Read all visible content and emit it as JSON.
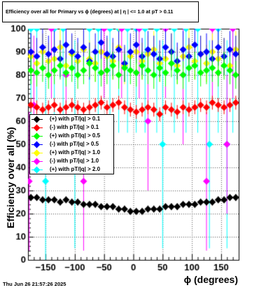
{
  "chart_data": {
    "type": "scatter",
    "title": "Efficiency over all for Primary vs ϕ (degrees) at |  η  | <= 1.0 at pT > 0.11",
    "xlabel": "ϕ (degrees)",
    "ylabel": "Efficiency over all (%)",
    "xlim": [
      -180,
      180
    ],
    "ylim": [
      0,
      100
    ],
    "x_ticks": [
      "−150",
      "−100",
      "−50",
      "0",
      "50",
      "100",
      "150"
    ],
    "y_ticks": [
      "0",
      "10",
      "20",
      "30",
      "40",
      "50",
      "60",
      "70",
      "80",
      "90",
      "100"
    ],
    "grid": true,
    "legend_position": "middle-left",
    "series": [
      {
        "name": "(+) with pT/|q| > 0.1",
        "color": "#000000",
        "x": [
          -175,
          -165,
          -155,
          -145,
          -135,
          -125,
          -115,
          -105,
          -95,
          -85,
          -75,
          -65,
          -55,
          -45,
          -35,
          -25,
          -15,
          -5,
          5,
          15,
          25,
          35,
          45,
          55,
          65,
          75,
          85,
          95,
          105,
          115,
          125,
          135,
          145,
          155,
          165,
          175
        ],
        "y": [
          27,
          27,
          26,
          26,
          26,
          25,
          26,
          25,
          25,
          24,
          24,
          24,
          23,
          23,
          23,
          22,
          22,
          21,
          21,
          21,
          22,
          22,
          22,
          23,
          23,
          23,
          24,
          24,
          24,
          25,
          25,
          25,
          26,
          26,
          27,
          27
        ]
      },
      {
        "name": "(-) with pT/|q| > 0.1",
        "color": "#ff0000",
        "x": [
          -175,
          -165,
          -155,
          -145,
          -135,
          -125,
          -115,
          -105,
          -95,
          -85,
          -75,
          -65,
          -55,
          -45,
          -35,
          -25,
          -15,
          -5,
          5,
          15,
          25,
          35,
          45,
          55,
          65,
          75,
          85,
          95,
          105,
          115,
          125,
          135,
          145,
          155,
          165,
          175
        ],
        "y": [
          67,
          66,
          65,
          66,
          67,
          65,
          66,
          67,
          66,
          65,
          66,
          67,
          68,
          66,
          67,
          68,
          66,
          65,
          64,
          65,
          66,
          65,
          63,
          66,
          65,
          64,
          66,
          65,
          66,
          67,
          66,
          68,
          67,
          66,
          67,
          68
        ]
      },
      {
        "name": "(+) with pT/|q| > 0.5",
        "color": "#00ff00",
        "x": [
          -175,
          -165,
          -155,
          -145,
          -135,
          -125,
          -115,
          -105,
          -95,
          -85,
          -75,
          -65,
          -55,
          -45,
          -35,
          -25,
          -15,
          -5,
          5,
          15,
          25,
          35,
          45,
          55,
          65,
          75,
          85,
          95,
          105,
          115,
          125,
          135,
          145,
          155,
          165,
          175
        ],
        "y": [
          82,
          81,
          83,
          80,
          82,
          84,
          81,
          83,
          80,
          82,
          85,
          83,
          81,
          82,
          84,
          80,
          83,
          82,
          81,
          84,
          82,
          80,
          83,
          81,
          85,
          82,
          80,
          83,
          84,
          81,
          82,
          83,
          81,
          84,
          82,
          80
        ]
      },
      {
        "name": "(-) with pT/|q| > 0.5",
        "color": "#0000ff",
        "x": [
          -175,
          -165,
          -155,
          -145,
          -135,
          -125,
          -115,
          -105,
          -95,
          -85,
          -75,
          -65,
          -55,
          -45,
          -35,
          -25,
          -15,
          -5,
          5,
          15,
          25,
          35,
          45,
          55,
          65,
          75,
          85,
          95,
          105,
          115,
          125,
          135,
          145,
          155,
          165,
          175
        ],
        "y": [
          90,
          88,
          92,
          89,
          91,
          87,
          93,
          90,
          88,
          92,
          86,
          90,
          94,
          89,
          88,
          91,
          85,
          90,
          93,
          88,
          91,
          89,
          87,
          92,
          90,
          86,
          91,
          88,
          93,
          89,
          90,
          87,
          92,
          88,
          91,
          89
        ]
      },
      {
        "name": "(+) with pT/|q| > 1.0",
        "color": "#ffff00",
        "x": [
          -175,
          -165,
          -155,
          -145,
          -135,
          -125,
          -115,
          -105,
          -95,
          -85,
          -75,
          -65,
          -55,
          -45,
          -35,
          -25,
          -15,
          -5,
          5,
          15,
          25,
          35,
          45,
          55,
          65,
          75,
          85,
          95,
          105,
          115,
          125,
          135,
          145,
          155,
          165,
          175
        ],
        "y": [
          88,
          85,
          90,
          86,
          87,
          92,
          84,
          89,
          86,
          91,
          87,
          85,
          90,
          88,
          86,
          92,
          84,
          88,
          90,
          86,
          89,
          91,
          85,
          87,
          90,
          84,
          88,
          92,
          86,
          89,
          85,
          90,
          87,
          88,
          84,
          91
        ]
      },
      {
        "name": "(-) with pT/|q| > 1.0",
        "color": "#ff00ff",
        "x": [
          -178,
          -170,
          -140,
          -115,
          -85,
          -50,
          -20,
          10,
          25,
          55,
          85,
          125,
          135,
          160,
          170
        ],
        "y": [
          34,
          67,
          100,
          80,
          34,
          100,
          100,
          100,
          60,
          100,
          80,
          34,
          100,
          50,
          100
        ]
      },
      {
        "name": "(+) with pT/|q| > 2.0",
        "color": "#00ffff",
        "x": [
          -175,
          -165,
          -150,
          -135,
          -120,
          -100,
          -75,
          -60,
          -40,
          -25,
          -10,
          5,
          20,
          40,
          50,
          70,
          90,
          110,
          130,
          145,
          160,
          170
        ],
        "y": [
          100,
          100,
          34,
          100,
          100,
          50,
          100,
          100,
          100,
          100,
          100,
          100,
          100,
          100,
          50,
          100,
          100,
          100,
          50,
          100,
          50,
          100
        ]
      }
    ]
  },
  "footer": {
    "timestamp": "Thu Jun 26 21:57:26 2025"
  }
}
